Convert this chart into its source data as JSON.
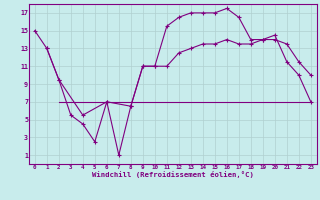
{
  "xlabel": "Windchill (Refroidissement éolien,°C)",
  "background_color": "#c8ecec",
  "line_color": "#800080",
  "x_ticks": [
    0,
    1,
    2,
    3,
    4,
    5,
    6,
    7,
    8,
    9,
    10,
    11,
    12,
    13,
    14,
    15,
    16,
    17,
    18,
    19,
    20,
    21,
    22,
    23
  ],
  "y_ticks": [
    1,
    3,
    5,
    7,
    9,
    11,
    13,
    15,
    17
  ],
  "ylim": [
    0,
    18
  ],
  "xlim": [
    -0.5,
    23.5
  ],
  "series1_x": [
    0,
    1,
    2,
    3,
    4,
    5,
    6,
    7,
    8,
    9,
    10,
    11,
    12,
    13,
    14,
    15,
    16,
    17,
    18,
    19,
    20,
    21,
    22,
    23
  ],
  "series1_y": [
    15,
    13,
    9.5,
    5.5,
    4.5,
    2.5,
    7,
    1,
    6.5,
    11,
    11,
    15.5,
    16.5,
    17,
    17,
    17,
    17.5,
    16.5,
    14,
    14,
    14.5,
    11.5,
    10,
    7
  ],
  "series2_x": [
    2,
    6,
    23
  ],
  "series2_y": [
    7,
    7,
    7
  ],
  "series3_x": [
    1,
    2,
    4,
    6,
    8,
    9,
    10,
    11,
    12,
    13,
    14,
    15,
    16,
    17,
    18,
    19,
    20,
    21,
    22,
    23
  ],
  "series3_y": [
    13,
    9.5,
    5.5,
    7,
    6.5,
    11,
    11,
    11,
    12.5,
    13,
    13.5,
    13.5,
    14,
    13.5,
    13.5,
    14,
    14,
    13.5,
    11.5,
    10
  ],
  "grid_color": "#b0d0d0",
  "spine_color": "#800080"
}
